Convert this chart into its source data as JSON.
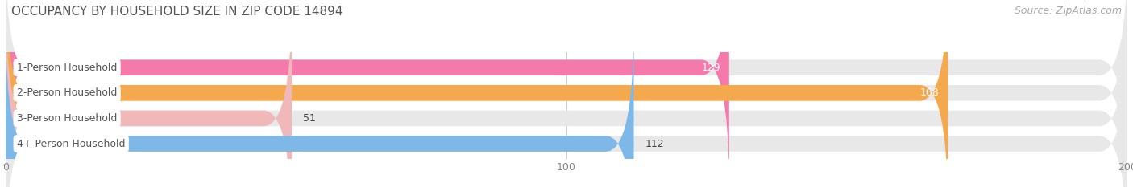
{
  "title": "OCCUPANCY BY HOUSEHOLD SIZE IN ZIP CODE 14894",
  "source": "Source: ZipAtlas.com",
  "categories": [
    "1-Person Household",
    "2-Person Household",
    "3-Person Household",
    "4+ Person Household"
  ],
  "values": [
    129,
    168,
    51,
    112
  ],
  "bar_colors": [
    "#f47aab",
    "#f5a94e",
    "#f0b8b8",
    "#7db8e8"
  ],
  "bar_bg_color": "#e8e8e8",
  "label_in_bar": [
    true,
    true,
    false,
    false
  ],
  "xlim": [
    0,
    200
  ],
  "xmax_bg": 200,
  "xticks": [
    0,
    100,
    200
  ],
  "figsize": [
    14.06,
    2.33
  ],
  "dpi": 100,
  "title_fontsize": 11,
  "source_fontsize": 9,
  "bar_label_fontsize": 9,
  "tick_fontsize": 9,
  "category_fontsize": 9,
  "bar_height": 0.62,
  "ylim": [
    -0.6,
    3.6
  ]
}
